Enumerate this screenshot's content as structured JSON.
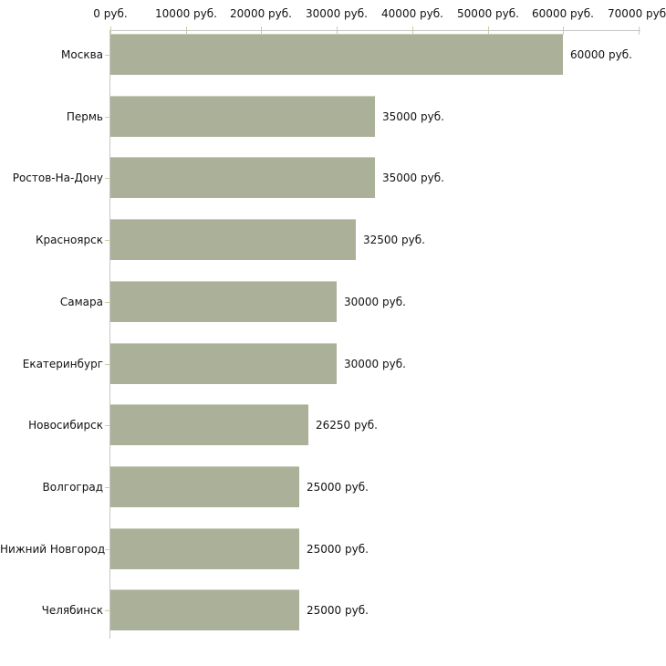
{
  "chart_data": {
    "type": "bar",
    "orientation": "horizontal",
    "title": "",
    "xlabel": "",
    "ylabel": "",
    "xlim": [
      0,
      70000
    ],
    "grid": false,
    "legend_position": "none",
    "x_ticks": [
      0,
      10000,
      20000,
      30000,
      40000,
      50000,
      60000,
      70000
    ],
    "x_tick_labels": [
      "0 руб.",
      "10000 руб.",
      "20000 руб.",
      "30000 руб.",
      "40000 руб.",
      "50000 руб.",
      "60000 руб.",
      "70000 руб."
    ],
    "categories": [
      "Москва",
      "Пермь",
      "Ростов-На-Дону",
      "Красноярск",
      "Самара",
      "Екатеринбург",
      "Новосибирск",
      "Волгоград",
      "Нижний Новгород",
      "Челябинск"
    ],
    "values": [
      60000,
      35000,
      35000,
      32500,
      30000,
      30000,
      26250,
      25000,
      25000,
      25000
    ],
    "value_labels": [
      "60000 руб.",
      "35000 руб.",
      "35000 руб.",
      "32500 руб.",
      "30000 руб.",
      "30000 руб.",
      "26250 руб.",
      "25000 руб.",
      "25000 руб.",
      "25000 руб."
    ],
    "colors": {
      "bar": "#abb199",
      "bar_top_edge": "#ccd0bc",
      "axis_line": "#c6c6c6",
      "tick_mark": "#c9cda6",
      "text": "#111111",
      "background": "#ffffff"
    }
  }
}
